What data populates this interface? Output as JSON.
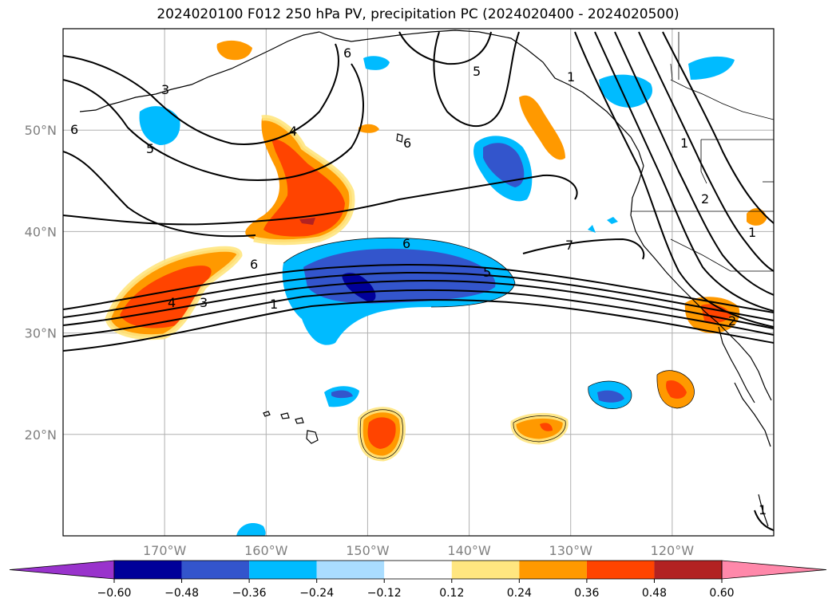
{
  "title": "2024020100 F012 250 hPa PV, precipitation PC (2024020400 - 2024020500)",
  "map": {
    "lon_range": [
      -180,
      -110
    ],
    "lat_range": [
      10,
      60
    ],
    "lat_ticks": [
      {
        "value": 50,
        "label": "50°N"
      },
      {
        "value": 40,
        "label": "40°N"
      },
      {
        "value": 30,
        "label": "30°N"
      },
      {
        "value": 20,
        "label": "20°N"
      }
    ],
    "lon_ticks": [
      {
        "value": -170,
        "label": "170°W"
      },
      {
        "value": -160,
        "label": "160°W"
      },
      {
        "value": -150,
        "label": "150°W"
      },
      {
        "value": -140,
        "label": "140°W"
      },
      {
        "value": -130,
        "label": "130°W"
      },
      {
        "value": -120,
        "label": "120°W"
      }
    ],
    "contour_labels": [
      "1",
      "3",
      "4",
      "6",
      "5",
      "7",
      "2"
    ]
  },
  "colorbar": {
    "levels": [
      "−0.60",
      "−0.48",
      "−0.36",
      "−0.24",
      "−0.12",
      "0.12",
      "0.24",
      "0.36",
      "0.48",
      "0.60"
    ],
    "colors": [
      "#9933cc",
      "#000099",
      "#3355cc",
      "#00bbff",
      "#aaddff",
      "#ffffff",
      "#ffe680",
      "#ff9900",
      "#ff4400",
      "#b22222",
      "#ff88aa"
    ]
  }
}
